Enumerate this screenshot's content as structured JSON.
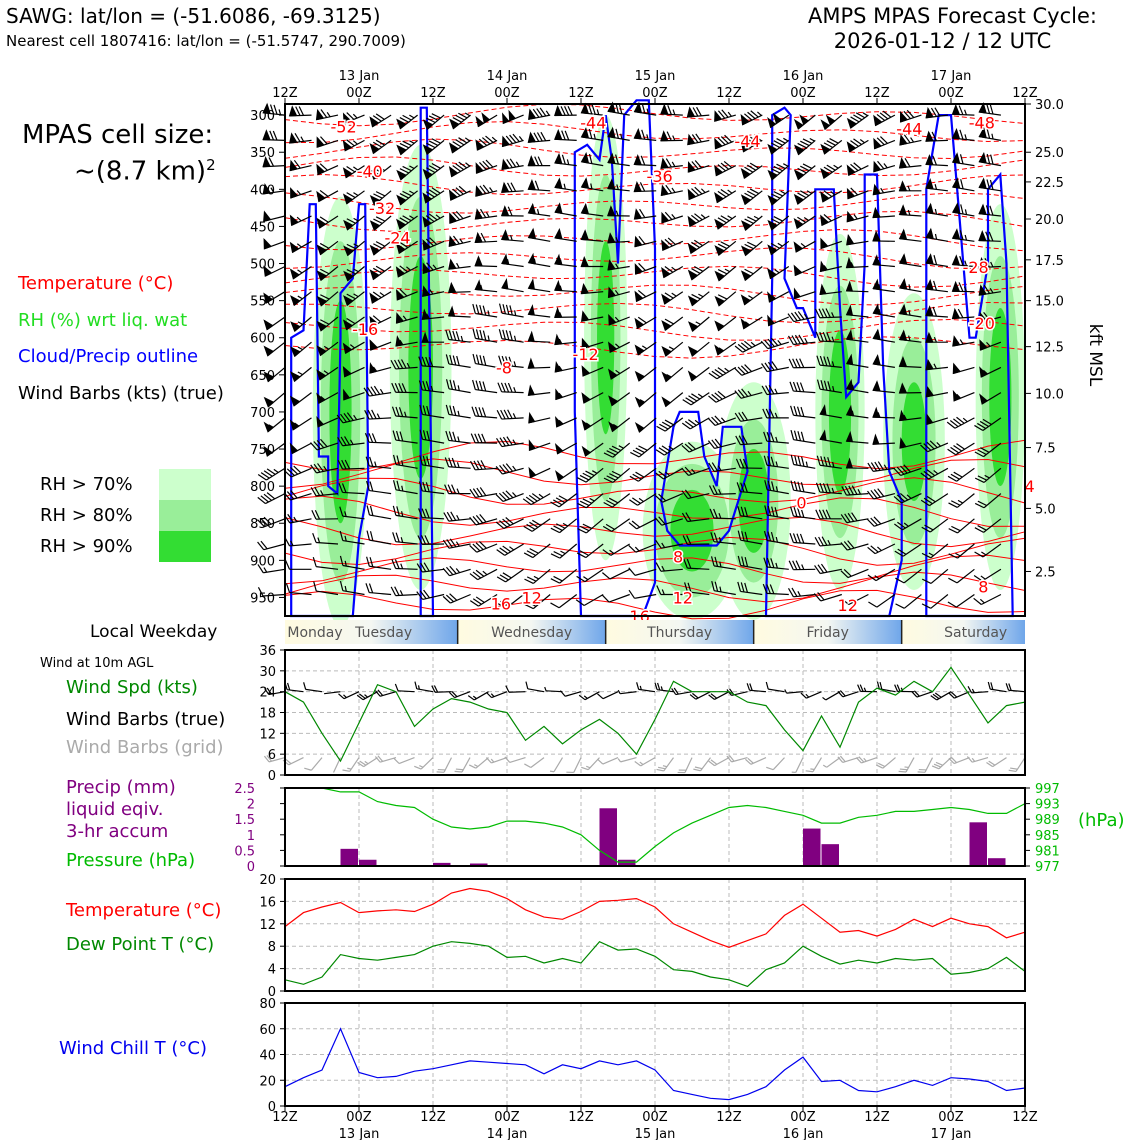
{
  "header": {
    "station_line": "SAWG: lat/lon = (-51.6086, -69.3125)",
    "cell_line": "Nearest cell 1807416: lat/lon = (-51.5747, 290.7009)",
    "cycle_title": "AMPS MPAS Forecast Cycle:",
    "cycle_time": "2026-01-12 / 12 UTC"
  },
  "left_panel": {
    "cell_size_label": "MPAS cell size:",
    "cell_size_value": "~(8.7 km)",
    "cell_size_sup": "2",
    "legend_temperature": "Temperature (°C)",
    "legend_rh": "RH (%) wrt liq. wat",
    "legend_cloud": "Cloud/Precip outline",
    "legend_wind": "Wind Barbs (kts) (true)",
    "rh_levels": [
      {
        "label": "RH > 70%",
        "color": "#ccffcc"
      },
      {
        "label": "RH > 80%",
        "color": "#99ee99"
      },
      {
        "label": "RH > 90%",
        "color": "#33dd33"
      }
    ],
    "local_weekday": "Local Weekday",
    "wind_10m": "Wind at 10m AGL",
    "wind_spd": "Wind Spd (kts)",
    "wind_barbs_true": "Wind Barbs (true)",
    "wind_barbs_grid": "Wind Barbs (grid)",
    "precip_1": "Precip (mm)",
    "precip_2": "liquid eqiv.",
    "precip_3": "3-hr accum",
    "pressure_label": "Pressure (hPa)",
    "hpa_label": "(hPa)",
    "temp_label": "Temperature (°C)",
    "dew_label": "Dew Point T (°C)",
    "windchill_label": "Wind Chill T (°C)"
  },
  "colors": {
    "temperature": "#ff0000",
    "rh": "#22dd22",
    "cloud": "#0000ff",
    "wind": "#000000",
    "wind_grid": "#aaaaaa",
    "windspd": "#008800",
    "precip": "#800080",
    "pressure": "#00bb00",
    "dewpoint": "#008800",
    "windchill": "#0000ee"
  },
  "chart_data": [
    {
      "type": "heatmap",
      "name": "cross-section",
      "x_ticks_top": [
        "12Z",
        "00Z",
        "12Z",
        "00Z",
        "12Z",
        "00Z",
        "12Z",
        "00Z",
        "12Z",
        "00Z",
        "12Z"
      ],
      "date_labels": [
        "13 Jan",
        "14 Jan",
        "15 Jan",
        "16 Jan",
        "17 Jan"
      ],
      "pressure_ticks": [
        300,
        350,
        400,
        450,
        500,
        550,
        600,
        650,
        700,
        750,
        800,
        850,
        900,
        950
      ],
      "kft_ticks": [
        "30.0",
        "25.0",
        "22.5",
        "20.0",
        "17.5",
        "15.0",
        "12.5",
        "10.0",
        "7.5",
        "5.0",
        "2.5"
      ],
      "kft_axis_label": "kft MSL",
      "temp_contour_labels": [
        {
          "t": "-52",
          "x": 3.8,
          "p": 315
        },
        {
          "t": "-44",
          "x": 20,
          "p": 310
        },
        {
          "t": "-44",
          "x": 30,
          "p": 335
        },
        {
          "t": "-44",
          "x": 40.5,
          "p": 318
        },
        {
          "t": "-48",
          "x": 45.2,
          "p": 310
        },
        {
          "t": "-40",
          "x": 5.5,
          "p": 375
        },
        {
          "t": "-36",
          "x": 24.3,
          "p": 382
        },
        {
          "t": "-32",
          "x": 6.3,
          "p": 425
        },
        {
          "t": "-24",
          "x": 7.3,
          "p": 465
        },
        {
          "t": "-28",
          "x": 44.8,
          "p": 505
        },
        {
          "t": "-20",
          "x": 45.2,
          "p": 580
        },
        {
          "t": "-16",
          "x": 5.2,
          "p": 588
        },
        {
          "t": "-8",
          "x": 14.2,
          "p": 640
        },
        {
          "t": "-12",
          "x": 19.5,
          "p": 622
        },
        {
          "t": "0",
          "x": 33.5,
          "p": 822
        },
        {
          "t": "4",
          "x": 48.3,
          "p": 800
        },
        {
          "t": "8",
          "x": 25.5,
          "p": 895
        },
        {
          "t": "8",
          "x": 45.3,
          "p": 935
        },
        {
          "t": "16",
          "x": 14,
          "p": 958
        },
        {
          "t": "12",
          "x": 16,
          "p": 950
        },
        {
          "t": "12",
          "x": 25.8,
          "p": 950
        },
        {
          "t": "12",
          "x": 36.5,
          "p": 960
        },
        {
          "t": "16",
          "x": 23,
          "p": 975
        }
      ]
    },
    {
      "type": "line",
      "name": "weekday-band",
      "weekdays": [
        "Monday",
        "Tuesday",
        "Wednesday",
        "Thursday",
        "Friday",
        "Saturday"
      ]
    },
    {
      "type": "line",
      "name": "wind-speed",
      "ylim": [
        0,
        36
      ],
      "yticks": [
        0,
        6,
        12,
        18,
        24,
        30,
        36
      ],
      "x": [
        0,
        3,
        6,
        9,
        12,
        15,
        18,
        21,
        24,
        27,
        30,
        33,
        36,
        39,
        42,
        45,
        48,
        51,
        54,
        57,
        60,
        63,
        66,
        69,
        72,
        75,
        78,
        81,
        84,
        87,
        90,
        93,
        96,
        99,
        102,
        105,
        108,
        111,
        114,
        117,
        120
      ],
      "values": [
        24,
        21,
        12,
        4,
        15,
        26,
        24,
        14,
        19,
        22,
        21,
        19,
        18,
        10,
        14,
        9,
        13,
        16,
        12,
        6,
        16,
        27,
        24,
        24,
        24,
        21,
        20,
        13,
        7,
        17,
        8,
        21,
        25,
        23,
        27,
        24,
        31,
        23,
        15,
        20,
        21
      ]
    },
    {
      "type": "bar",
      "name": "precip-pressure",
      "ylim": [
        0,
        2.5
      ],
      "yticks": [
        0,
        0.5,
        1.0,
        1.5,
        2.0,
        2.5
      ],
      "pressure_ticks": [
        977,
        981,
        985,
        989,
        993,
        997
      ],
      "precip_x": [
        9,
        12,
        24,
        30,
        51,
        54,
        84,
        87,
        111,
        114
      ],
      "precip_values": [
        0.55,
        0.2,
        0.1,
        0.08,
        1.85,
        0.2,
        1.2,
        0.7,
        1.4,
        0.25
      ],
      "pressure_x": [
        0,
        3,
        6,
        9,
        12,
        15,
        18,
        21,
        24,
        27,
        30,
        33,
        36,
        39,
        42,
        45,
        48,
        51,
        54,
        57,
        60,
        63,
        66,
        69,
        72,
        75,
        78,
        81,
        84,
        87,
        90,
        93,
        96,
        99,
        102,
        105,
        108,
        111,
        114,
        117,
        120
      ],
      "pressure_values": [
        997,
        997,
        997,
        996,
        996,
        993.5,
        992.5,
        992,
        989,
        987,
        986.5,
        987,
        988.5,
        988.5,
        988,
        987,
        985,
        981,
        978,
        978,
        982,
        985.5,
        988,
        990,
        992,
        992.5,
        992,
        991,
        990,
        988,
        988,
        989.5,
        990,
        991,
        991,
        991.5,
        992,
        991.5,
        990.5,
        990.5,
        993
      ]
    },
    {
      "type": "line",
      "name": "temp-dewpoint",
      "ylim": [
        0,
        20
      ],
      "yticks": [
        0,
        4,
        8,
        12,
        16,
        20
      ],
      "x": [
        0,
        3,
        6,
        9,
        12,
        15,
        18,
        21,
        24,
        27,
        30,
        33,
        36,
        39,
        42,
        45,
        48,
        51,
        54,
        57,
        60,
        63,
        66,
        69,
        72,
        75,
        78,
        81,
        84,
        87,
        90,
        93,
        96,
        99,
        102,
        105,
        108,
        111,
        114,
        117,
        120
      ],
      "series": [
        {
          "name": "Temperature (°C)",
          "values": [
            11.5,
            14,
            15,
            15.8,
            14,
            14.3,
            14.5,
            14.2,
            15.5,
            17.5,
            18.3,
            17.8,
            16.5,
            14.5,
            13.2,
            12.8,
            14.2,
            16,
            16.2,
            16.5,
            15,
            12,
            10.5,
            9,
            7.8,
            9,
            10.2,
            13.5,
            15.5,
            13,
            10.5,
            10.8,
            9.8,
            11,
            12.8,
            11.5,
            13,
            12,
            11.5,
            9.5,
            10.5
          ]
        },
        {
          "name": "Dew Point T (°C)",
          "values": [
            2,
            1.2,
            2.5,
            6.5,
            5.8,
            5.5,
            6,
            6.5,
            8,
            8.8,
            8.5,
            8,
            6,
            6.2,
            5,
            5.8,
            5,
            8.8,
            7.3,
            7.5,
            6.2,
            3.8,
            3.5,
            2.5,
            2,
            0.8,
            3.8,
            5,
            8,
            6.2,
            4.8,
            5.5,
            5,
            5.8,
            5.5,
            5.8,
            3,
            3.3,
            4,
            6,
            3.5
          ]
        }
      ]
    },
    {
      "type": "line",
      "name": "wind-chill",
      "ylim": [
        0,
        80
      ],
      "yticks": [
        0,
        20,
        40,
        60,
        80
      ],
      "x": [
        0,
        3,
        6,
        9,
        12,
        15,
        18,
        21,
        24,
        27,
        30,
        33,
        36,
        39,
        42,
        45,
        48,
        51,
        54,
        57,
        60,
        63,
        66,
        69,
        72,
        75,
        78,
        81,
        84,
        87,
        90,
        93,
        96,
        99,
        102,
        105,
        108,
        111,
        114,
        117,
        120
      ],
      "values": [
        15,
        22,
        28,
        60,
        26,
        22,
        23,
        27,
        29,
        32,
        35,
        34,
        33,
        32,
        25,
        32,
        29,
        35,
        32,
        35,
        28,
        12,
        9,
        6,
        5,
        9,
        15,
        28,
        38,
        19,
        20,
        12,
        11,
        15,
        20,
        16,
        22,
        21,
        19,
        12,
        14
      ]
    }
  ],
  "bottom_axis": {
    "ticks": [
      "12Z",
      "00Z",
      "12Z",
      "00Z",
      "12Z",
      "00Z",
      "12Z",
      "00Z",
      "12Z",
      "00Z",
      "12Z"
    ],
    "dates": [
      "13 Jan",
      "14 Jan",
      "15 Jan",
      "16 Jan",
      "17 Jan"
    ]
  }
}
